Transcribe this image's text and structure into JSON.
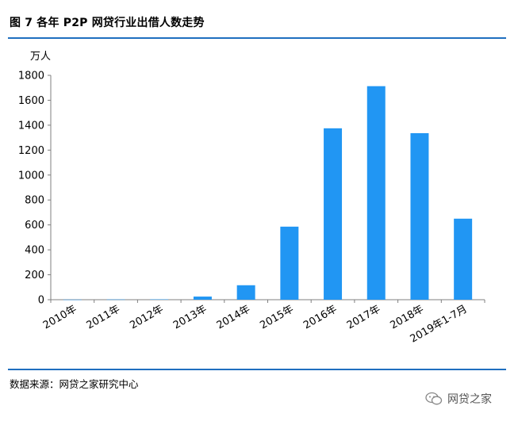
{
  "header": {
    "title": "图 7  各年 P2P 网贷行业出借人数走势"
  },
  "footer": {
    "source": "数据来源：网贷之家研究中心",
    "watermark": "网贷之家"
  },
  "chart_data": {
    "type": "bar",
    "title": "图 7  各年 P2P 网贷行业出借人数走势",
    "ylabel": "万人",
    "xlabel": "",
    "categories": [
      "2010年",
      "2011年",
      "2012年",
      "2013年",
      "2014年",
      "2015年",
      "2016年",
      "2017年",
      "2018年",
      "2019年1-7月"
    ],
    "values": [
      1,
      2,
      3,
      25,
      116,
      586,
      1375,
      1713,
      1336,
      650
    ],
    "ylim": [
      0,
      1800
    ],
    "yticks": [
      0,
      200,
      400,
      600,
      800,
      1000,
      1200,
      1400,
      1600,
      1800
    ],
    "grid": false,
    "legend": "none",
    "colors": {
      "bar": "#2196F3",
      "axis": "#7f7f7f",
      "rule": "#1f6fbf"
    }
  }
}
